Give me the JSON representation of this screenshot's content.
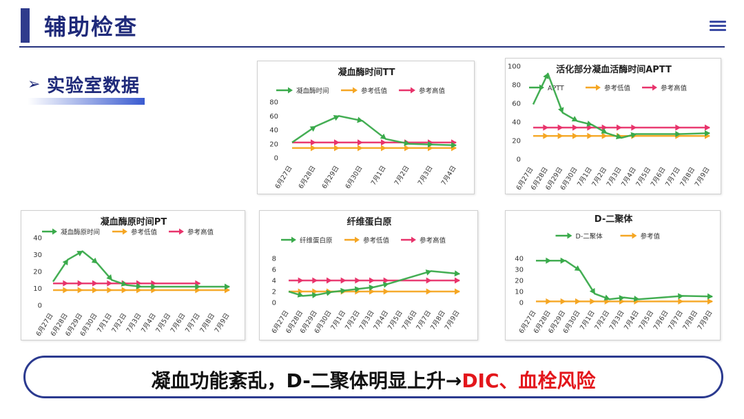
{
  "header": {
    "title": "辅助检查"
  },
  "section": {
    "arrow": "➢",
    "label": "实验室数据"
  },
  "colors": {
    "green": "#3aaa4b",
    "orange": "#f5a623",
    "pink": "#e8336b",
    "navy": "#2b3a8f",
    "red": "#e3161b"
  },
  "chart_data": [
    {
      "id": "tt",
      "type": "line",
      "title": "凝血酶时间TT",
      "x": [
        "6月27日",
        "6月28日",
        "6月29日",
        "6月30日",
        "7月1日",
        "7月2日",
        "7月3日",
        "7月4日"
      ],
      "ylim": [
        0,
        80
      ],
      "yticks": [
        0,
        20,
        40,
        60,
        80
      ],
      "series": [
        {
          "name": "凝血酶时间",
          "color": "green",
          "points": [
            [
              0,
              22
            ],
            [
              1,
              45
            ],
            [
              2,
              60
            ],
            [
              3,
              53
            ],
            [
              4,
              27
            ],
            [
              5,
              20
            ],
            [
              6,
              19
            ],
            [
              7,
              18
            ]
          ]
        },
        {
          "name": "参考低值",
          "color": "orange",
          "points": [
            [
              0,
              14
            ],
            [
              1,
              14
            ],
            [
              2,
              14
            ],
            [
              3,
              14
            ],
            [
              4,
              14
            ],
            [
              5,
              14
            ],
            [
              6,
              14
            ],
            [
              7,
              14
            ]
          ]
        },
        {
          "name": "参考高值",
          "color": "pink",
          "points": [
            [
              0,
              22
            ],
            [
              1,
              22
            ],
            [
              2,
              22
            ],
            [
              3,
              22
            ],
            [
              4,
              22
            ],
            [
              5,
              22
            ],
            [
              6,
              22
            ],
            [
              7,
              22
            ]
          ]
        }
      ]
    },
    {
      "id": "aptt",
      "type": "line",
      "title": "活化部分凝血活酶时间APTT",
      "x": [
        "6月27日",
        "6月28日",
        "6月29日",
        "6月30日",
        "7月1日",
        "7月2日",
        "7月3日",
        "7月4日",
        "7月5日",
        "7月6日",
        "7月7日",
        "7月8日",
        "7月9日"
      ],
      "ylim": [
        0,
        100
      ],
      "yticks": [
        0,
        20,
        40,
        60,
        80,
        100
      ],
      "series": [
        {
          "name": "APTT",
          "color": "green",
          "points": [
            [
              0,
              59
            ],
            [
              1,
              92
            ],
            [
              2,
              50
            ],
            [
              3,
              41
            ],
            [
              4,
              37
            ],
            [
              5,
              28
            ],
            [
              6,
              23
            ],
            [
              7,
              27
            ],
            [
              10,
              27
            ],
            [
              12,
              28
            ]
          ]
        },
        {
          "name": "参考低值",
          "color": "orange",
          "points": [
            [
              0,
              25
            ],
            [
              1,
              25
            ],
            [
              2,
              25
            ],
            [
              3,
              25
            ],
            [
              4,
              25
            ],
            [
              5,
              25
            ],
            [
              6,
              25
            ],
            [
              7,
              25
            ],
            [
              10,
              25
            ],
            [
              12,
              25
            ]
          ]
        },
        {
          "name": "参考高值",
          "color": "pink",
          "points": [
            [
              0,
              34
            ],
            [
              1,
              34
            ],
            [
              2,
              34
            ],
            [
              3,
              34
            ],
            [
              4,
              34
            ],
            [
              5,
              34
            ],
            [
              6,
              34
            ],
            [
              7,
              34
            ],
            [
              10,
              34
            ],
            [
              12,
              34
            ]
          ]
        }
      ]
    },
    {
      "id": "pt",
      "type": "line",
      "title": "凝血酶原时间PT",
      "x": [
        "6月27日",
        "6月28日",
        "6月29日",
        "6月30日",
        "7月1日",
        "7月2日",
        "7月3日",
        "7月4日",
        "7月5日",
        "7月6日",
        "7月7日",
        "7月8日",
        "7月9日"
      ],
      "ylim": [
        0,
        40
      ],
      "yticks": [
        0,
        10,
        20,
        30,
        40
      ],
      "series": [
        {
          "name": "凝血酶原时间",
          "color": "green",
          "points": [
            [
              0,
              14
            ],
            [
              1,
              27
            ],
            [
              2,
              32
            ],
            [
              3,
              25
            ],
            [
              4,
              15
            ],
            [
              5,
              12
            ],
            [
              6,
              11
            ],
            [
              7,
              11
            ],
            [
              10,
              11
            ],
            [
              12,
              11
            ]
          ]
        },
        {
          "name": "参考低值",
          "color": "orange",
          "points": [
            [
              0,
              9
            ],
            [
              1,
              9
            ],
            [
              2,
              9
            ],
            [
              3,
              9
            ],
            [
              4,
              9
            ],
            [
              5,
              9
            ],
            [
              6,
              9
            ],
            [
              7,
              9
            ],
            [
              10,
              9
            ],
            [
              12,
              9
            ]
          ]
        },
        {
          "name": "参考高值",
          "color": "pink",
          "points": [
            [
              0,
              13
            ],
            [
              1,
              13
            ],
            [
              2,
              13
            ],
            [
              3,
              13
            ],
            [
              4,
              13
            ],
            [
              5,
              13
            ],
            [
              6,
              13
            ],
            [
              7,
              13
            ],
            [
              10,
              13
            ]
          ]
        }
      ]
    },
    {
      "id": "fib",
      "type": "line",
      "title": "纤维蛋白原",
      "x": [
        "6月27日",
        "6月28日",
        "6月29日",
        "6月30日",
        "7月1日",
        "7月2日",
        "7月3日",
        "7月4日",
        "7月5日",
        "7月6日",
        "7月7日",
        "7月8日",
        "7月9日"
      ],
      "ylim": [
        0,
        8
      ],
      "yticks": [
        0,
        2,
        4,
        6,
        8
      ],
      "series": [
        {
          "name": "纤维蛋白原",
          "color": "green",
          "points": [
            [
              0,
              2
            ],
            [
              1,
              1.2
            ],
            [
              2,
              1.4
            ],
            [
              3,
              1.9
            ],
            [
              4,
              2.2
            ],
            [
              5,
              2.5
            ],
            [
              6,
              2.8
            ],
            [
              7,
              3.4
            ],
            [
              10,
              5.7
            ],
            [
              12,
              5.2
            ]
          ]
        },
        {
          "name": "参考低值",
          "color": "orange",
          "points": [
            [
              0,
              2
            ],
            [
              1,
              2
            ],
            [
              2,
              2
            ],
            [
              3,
              2
            ],
            [
              4,
              2
            ],
            [
              5,
              2
            ],
            [
              6,
              2
            ],
            [
              7,
              2
            ],
            [
              10,
              2
            ],
            [
              12,
              2
            ]
          ]
        },
        {
          "name": "参考高值",
          "color": "pink",
          "points": [
            [
              0,
              4
            ],
            [
              1,
              4
            ],
            [
              2,
              4
            ],
            [
              3,
              4
            ],
            [
              4,
              4
            ],
            [
              5,
              4
            ],
            [
              6,
              4
            ],
            [
              7,
              4
            ],
            [
              10,
              4
            ],
            [
              12,
              4
            ]
          ]
        }
      ]
    },
    {
      "id": "dd",
      "type": "line",
      "title": "D-二聚体",
      "x": [
        "6月27日",
        "6月28日",
        "6月29日",
        "6月30日",
        "7月1日",
        "7月2日",
        "7月3日",
        "7月4日",
        "7月5日",
        "7月6日",
        "7月7日",
        "7月8日",
        "7月9日"
      ],
      "ylim": [
        0,
        40
      ],
      "yticks": [
        0,
        10,
        20,
        30,
        40
      ],
      "series": [
        {
          "name": "D-二聚体",
          "color": "green",
          "points": [
            [
              0,
              38
            ],
            [
              1,
              38
            ],
            [
              2,
              38
            ],
            [
              3,
              29
            ],
            [
              4,
              8
            ],
            [
              5,
              3
            ],
            [
              6,
              4.5
            ],
            [
              7,
              3
            ],
            [
              10,
              6
            ],
            [
              12,
              5.5
            ]
          ]
        },
        {
          "name": "参考值",
          "color": "orange",
          "points": [
            [
              0,
              1
            ],
            [
              1,
              1
            ],
            [
              2,
              1
            ],
            [
              3,
              1
            ],
            [
              4,
              1
            ],
            [
              5,
              1
            ],
            [
              6,
              1
            ],
            [
              7,
              1
            ],
            [
              10,
              1
            ],
            [
              12,
              1
            ]
          ]
        }
      ]
    }
  ],
  "bottom": {
    "text_black": "凝血功能紊乱，D-二聚体明显上升→",
    "text_red": "DIC、血栓风险"
  }
}
